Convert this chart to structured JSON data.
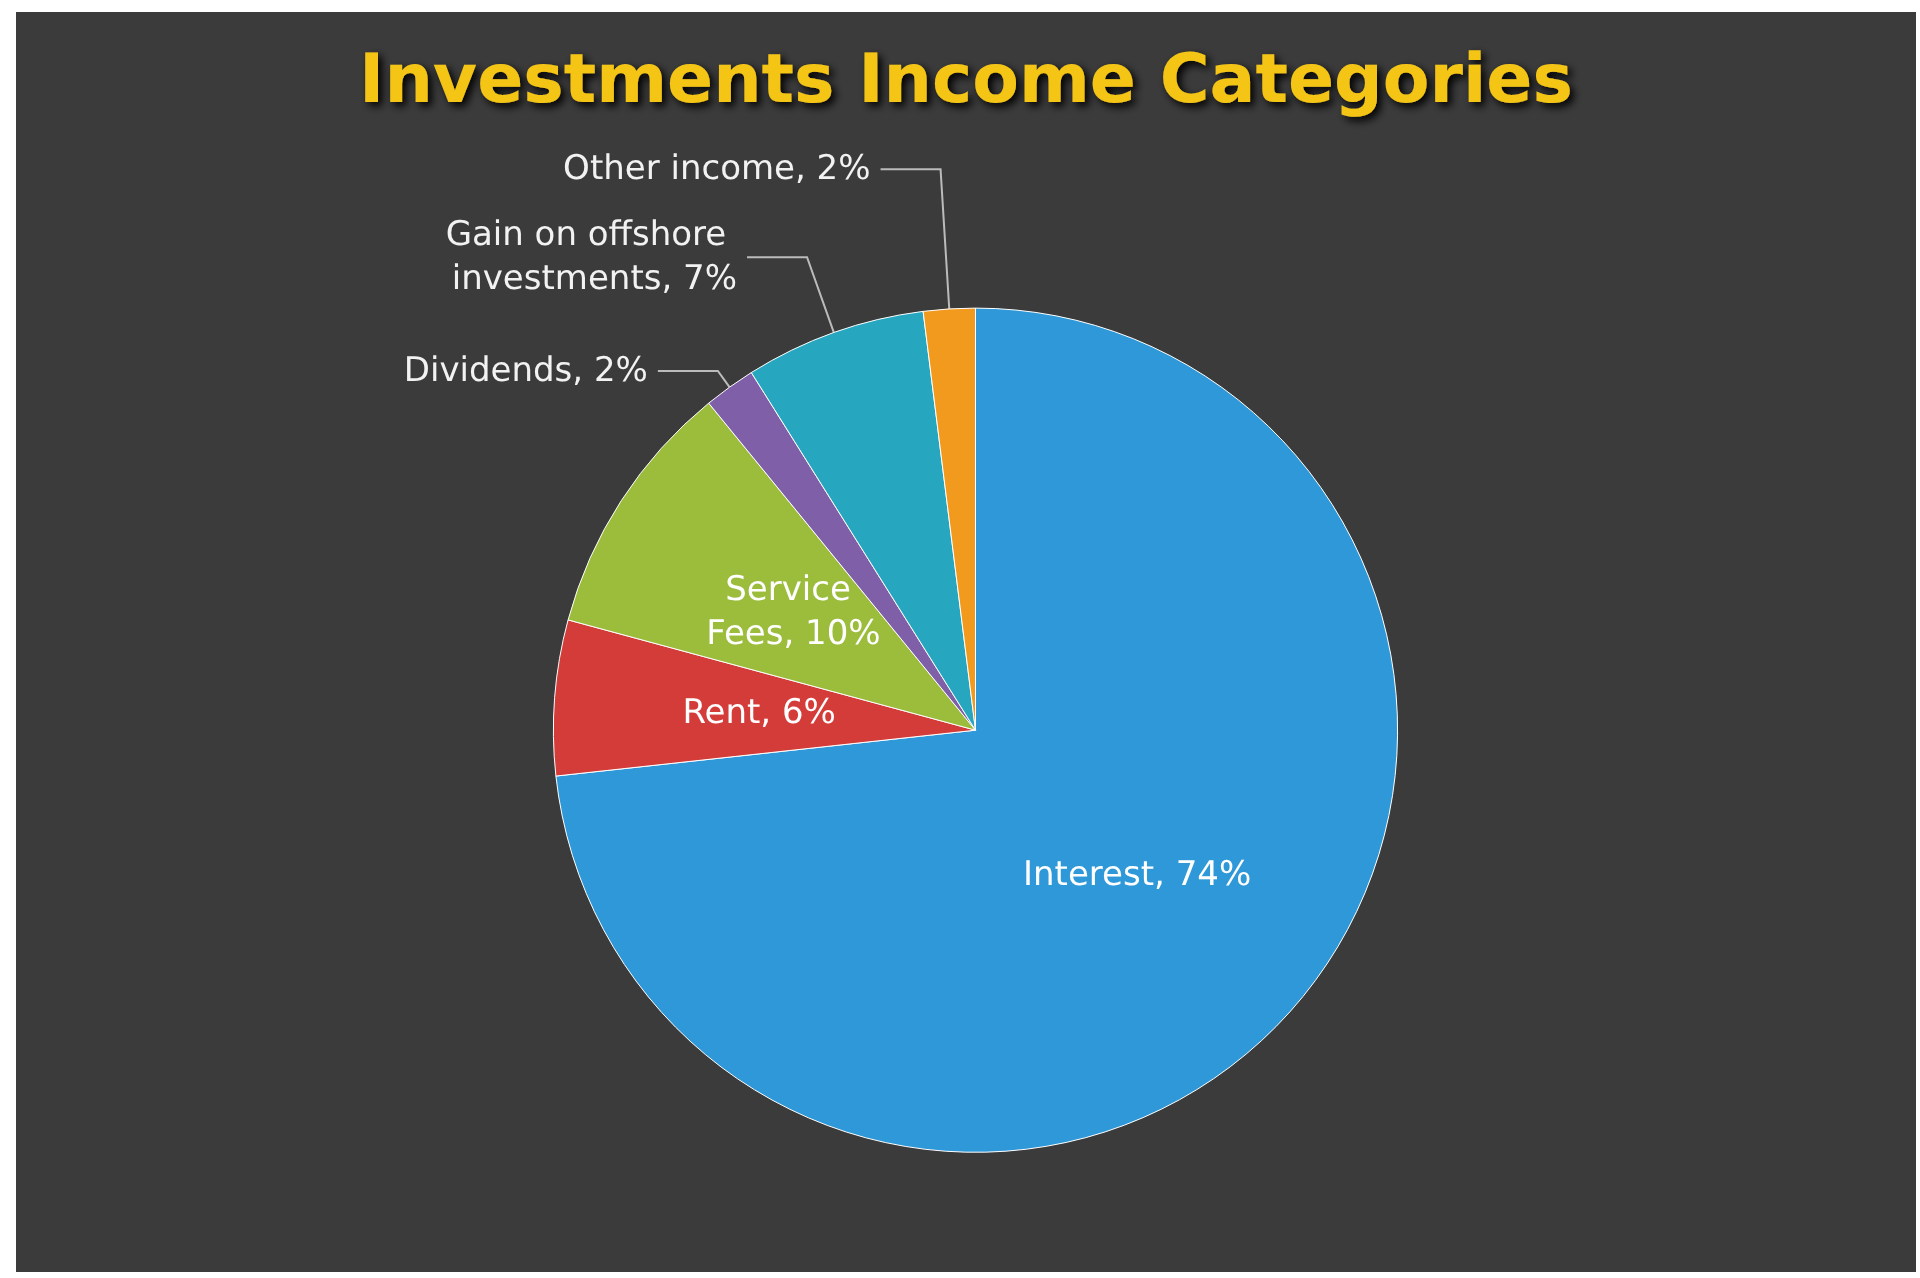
{
  "chart_data": {
    "type": "pie",
    "title": "Investments Income Categories",
    "categories": [
      "Interest",
      "Rent",
      "Service Fees",
      "Dividends",
      "Gain on offshore investments",
      "Other income"
    ],
    "values": [
      74,
      6,
      10,
      2,
      7,
      2
    ],
    "value_labels": [
      "74%",
      "6%",
      "10%",
      "2%",
      "7%",
      "2%"
    ],
    "colors": [
      "#2e98d8",
      "#d43c3a",
      "#9cbc3c",
      "#7e5fa8",
      "#27a6c0",
      "#f29a1e"
    ],
    "legend": false
  }
}
